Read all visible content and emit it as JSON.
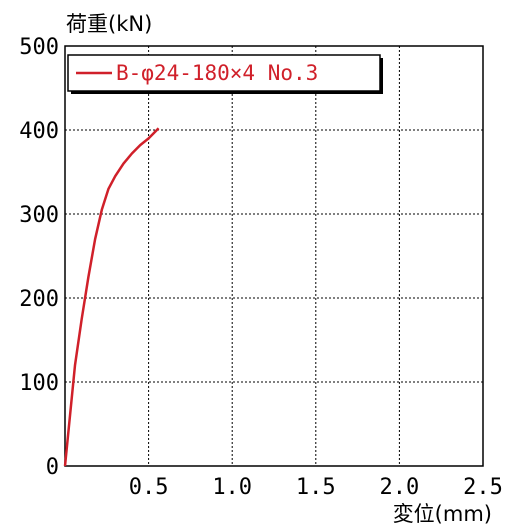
{
  "chart_data": {
    "type": "line",
    "ylabel": "荷重(kN)",
    "xlabel": "変位(mm)",
    "xlim": [
      0,
      2.5
    ],
    "ylim": [
      0,
      500
    ],
    "xticks": [
      "0.5",
      "1.0",
      "1.5",
      "2.0",
      "2.5"
    ],
    "yticks": [
      "0",
      "100",
      "200",
      "300",
      "400",
      "500"
    ],
    "grid": true,
    "legend_position": "top-left",
    "series": [
      {
        "name": "B-φ24-180×4 No.3",
        "color": "#d0202a",
        "x": [
          0,
          0.03,
          0.06,
          0.1,
          0.14,
          0.18,
          0.22,
          0.26,
          0.3,
          0.35,
          0.4,
          0.45,
          0.5,
          0.56
        ],
        "y": [
          0,
          60,
          120,
          175,
          225,
          270,
          305,
          330,
          345,
          360,
          372,
          382,
          390,
          402
        ]
      }
    ]
  }
}
